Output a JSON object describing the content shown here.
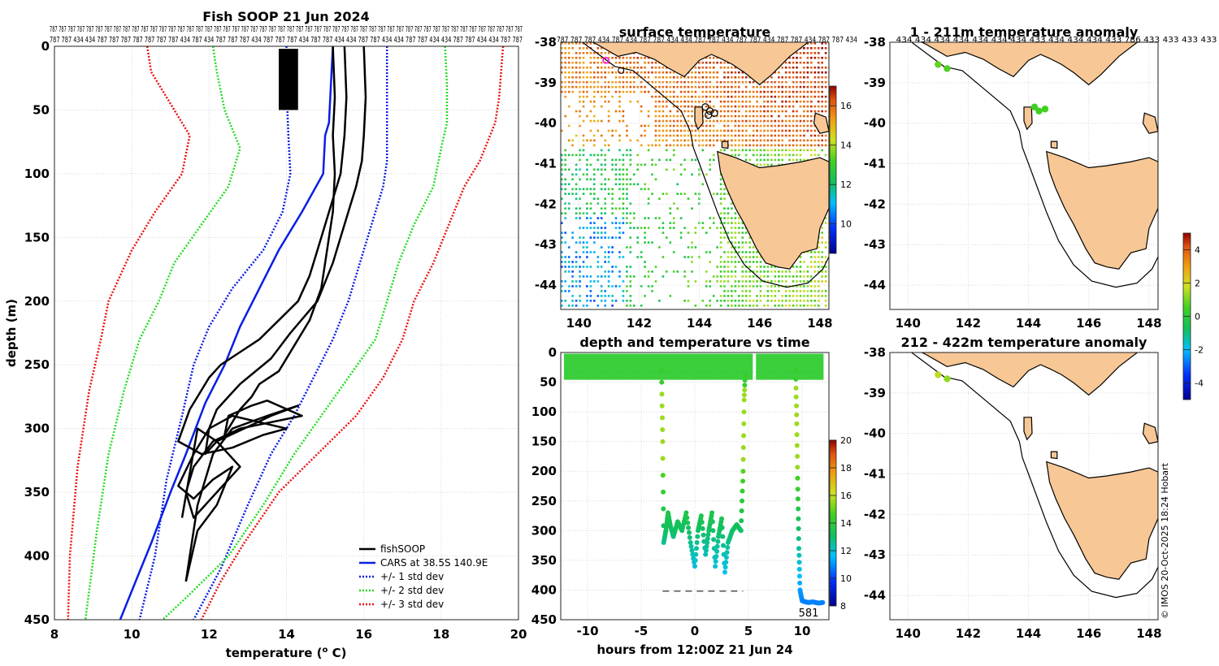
{
  "colors": {
    "land": "#f7c795",
    "sst_low": "#1030c0",
    "black": "#000000",
    "cars": "#0a1ee6",
    "std1": "#0a1ee6",
    "std2": "#22dd22",
    "std3": "#ee1111",
    "track_dot": "#ff00ff"
  },
  "chart_data": [
    {
      "id": "profile",
      "type": "line",
      "title": "Fish SOOP 21 Jun 2024",
      "xlabel": "temperature (",
      "xlabel_sup": "o",
      "xlabel_tail": " C)",
      "ylabel": "depth (m)",
      "xlim": [
        8,
        20
      ],
      "ylim": [
        0,
        450
      ],
      "xticks": [
        8,
        10,
        12,
        14,
        16,
        18,
        20
      ],
      "yticks": [
        0,
        50,
        100,
        150,
        200,
        250,
        300,
        350,
        400,
        450
      ],
      "grid": true,
      "top_labels_row1": "787 787 787 787 787 787 787 787 787 787 787 787 787 787 787 787 787 787 787 787 787 787 787 787 787 787 787 787 787 787 787 787 787 787 787 787 787 787 787 787 787 787 787 787 787 787 787 787 787 787 787 787",
      "top_labels_row2": "787 787 434 434 787 787 787 787 787 787 787 434 787 434 787 787 787 434 787 787 787 434 787 787 434 434 787 787 434 434 787 787 434 434 787 787 434 434 787 787",
      "legend": [
        "fishSOOP",
        "CARS at 38.5S 140.9E",
        "+/- 1 std dev",
        "+/- 2 std dev",
        "+/- 3 std dev"
      ],
      "series": [
        {
          "name": "CARS at 38.5S 140.9E",
          "style": "cars",
          "x": [
            15.2,
            15.15,
            15.1,
            15.0,
            14.95,
            14.4,
            13.8,
            13.3,
            12.8,
            12.4,
            11.9,
            11.4,
            11.0,
            10.5,
            10.1,
            9.7
          ],
          "y": [
            0,
            30,
            60,
            70,
            100,
            130,
            160,
            190,
            220,
            250,
            280,
            320,
            350,
            390,
            420,
            450
          ]
        },
        {
          "name": "+/- 1 std dev left",
          "style": "std1",
          "x": [
            14.0,
            14.0,
            14.05,
            14.1,
            13.9,
            13.4,
            12.6,
            12.0,
            11.6,
            11.3,
            10.9,
            10.6,
            10.2
          ],
          "y": [
            0,
            30,
            70,
            100,
            130,
            160,
            190,
            220,
            250,
            290,
            340,
            400,
            450
          ]
        },
        {
          "name": "+/- 1 std dev right",
          "style": "std1",
          "x": [
            16.6,
            16.6,
            16.6,
            16.6,
            16.5,
            16.2,
            15.9,
            15.6,
            15.2,
            14.7,
            14.2,
            13.6,
            13.0,
            12.3,
            11.6
          ],
          "y": [
            0,
            30,
            60,
            90,
            110,
            140,
            170,
            200,
            230,
            260,
            290,
            320,
            360,
            410,
            450
          ]
        },
        {
          "name": "+/- 2 std dev left",
          "style": "std2",
          "x": [
            12.1,
            12.2,
            12.4,
            12.8,
            12.5,
            11.8,
            11.1,
            10.7,
            10.2,
            9.8,
            9.4,
            9.1,
            8.8
          ],
          "y": [
            0,
            20,
            50,
            80,
            110,
            140,
            170,
            200,
            230,
            270,
            320,
            380,
            450
          ]
        },
        {
          "name": "+/- 2 std dev right",
          "style": "std2",
          "x": [
            18.1,
            18.15,
            18.15,
            18.0,
            17.8,
            17.3,
            16.9,
            16.6,
            16.3,
            15.6,
            14.9,
            14.2,
            13.4,
            12.5,
            11.5,
            10.8
          ],
          "y": [
            0,
            30,
            60,
            80,
            110,
            140,
            170,
            200,
            230,
            260,
            290,
            320,
            360,
            400,
            430,
            450
          ]
        },
        {
          "name": "+/- 3 std dev left",
          "style": "std3",
          "x": [
            10.4,
            10.5,
            10.9,
            11.5,
            11.3,
            10.6,
            10.0,
            9.4,
            9.2,
            8.9,
            8.6,
            8.4,
            8.35
          ],
          "y": [
            0,
            20,
            40,
            70,
            100,
            130,
            160,
            200,
            230,
            270,
            330,
            400,
            450
          ]
        },
        {
          "name": "+/- 3 std dev right",
          "style": "std3",
          "x": [
            19.6,
            19.55,
            19.5,
            19.4,
            19.0,
            18.6,
            18.2,
            17.8,
            17.3,
            17.0,
            16.5,
            15.8,
            14.8,
            13.8,
            12.9,
            12.3,
            11.8
          ],
          "y": [
            0,
            20,
            40,
            60,
            90,
            110,
            140,
            170,
            200,
            230,
            260,
            290,
            320,
            350,
            390,
            420,
            450
          ]
        },
        {
          "name": "fishSOOP",
          "style": "fish",
          "x": [
            15.2,
            15.25,
            15.2,
            15.25,
            15.2,
            15.1,
            15.0,
            14.9,
            14.6,
            14.2,
            13.8,
            13.3,
            13.1,
            12.8,
            12.6,
            12.4,
            12.5,
            13.1,
            13.5,
            14.4,
            12.8,
            12.1,
            11.6,
            11.4,
            11.6,
            12.2,
            12.8,
            12.2,
            11.7,
            11.3
          ],
          "y": [
            0,
            40,
            70,
            100,
            130,
            150,
            170,
            190,
            215,
            235,
            255,
            265,
            275,
            285,
            295,
            305,
            290,
            282,
            278,
            290,
            300,
            310,
            330,
            350,
            370,
            350,
            330,
            310,
            300,
            370
          ]
        },
        {
          "name": "fishSOOP",
          "style": "fish",
          "x": [
            16.0,
            16.05,
            16.0,
            15.95,
            15.8,
            15.6,
            15.4,
            15.2,
            14.8,
            14.1,
            13.6,
            13.2,
            12.8,
            12.5,
            12.2,
            12.0,
            11.9,
            12.2,
            12.9,
            13.6,
            14.3,
            13.5,
            12.6,
            12.1,
            11.7,
            11.5,
            11.4
          ],
          "y": [
            0,
            40,
            70,
            90,
            110,
            130,
            150,
            170,
            200,
            225,
            245,
            255,
            265,
            275,
            285,
            300,
            320,
            310,
            300,
            290,
            282,
            290,
            300,
            320,
            360,
            400,
            420
          ]
        },
        {
          "name": "fishSOOP",
          "style": "fish",
          "x": [
            15.5,
            15.55,
            15.5,
            15.4,
            15.2,
            15.0,
            14.8,
            14.6,
            14.3,
            13.8,
            13.3,
            12.8,
            12.3,
            12.0,
            11.8,
            11.5,
            11.2,
            11.8,
            12.6,
            13.4,
            14.0,
            13.3,
            12.6,
            12.0,
            11.6,
            11.2,
            11.6,
            12.1,
            12.6,
            12.2,
            11.7,
            11.4
          ],
          "y": [
            0,
            40,
            70,
            100,
            120,
            140,
            160,
            180,
            200,
            215,
            230,
            240,
            250,
            260,
            270,
            285,
            310,
            320,
            315,
            305,
            300,
            295,
            290,
            300,
            320,
            345,
            355,
            340,
            330,
            360,
            380,
            420
          ]
        }
      ],
      "fish_blob": {
        "x": [
          13.8,
          14.3
        ],
        "y": [
          2,
          50
        ]
      }
    },
    {
      "id": "sst_map",
      "type": "heatmap",
      "title": "surface temperature",
      "xlim": [
        139.4,
        148.3
      ],
      "ylim": [
        -44.6,
        -38
      ],
      "xticks": [
        140,
        142,
        144,
        146,
        148
      ],
      "yticks": [
        -38,
        -39,
        -40,
        -41,
        -42,
        -43,
        -44
      ],
      "ytick_labels": [
        "-38",
        "-39",
        "-40",
        "-41",
        "-42",
        "-43",
        "-44"
      ],
      "top_labels": "787 787 787 434 787 434 787 787 434 434 787 787 434 787 787 434 787 787 434 787 787 434",
      "colorbar": {
        "ticks": [
          "10",
          "12",
          "14",
          "16"
        ],
        "range": [
          8.5,
          17
        ]
      }
    },
    {
      "id": "depth_time",
      "type": "scatter",
      "title": "depth and temperature vs time",
      "xlabel": "hours from 12:00Z 21 Jun 24",
      "xlim": [
        -12.5,
        12.5
      ],
      "ylim": [
        0,
        450
      ],
      "xticks": [
        -10,
        -5,
        0,
        5,
        10
      ],
      "yticks": [
        0,
        50,
        100,
        150,
        200,
        250,
        300,
        350,
        400,
        450
      ],
      "annotation": "581",
      "colorbar": {
        "ticks": [
          "8",
          "10",
          "12",
          "14",
          "16",
          "18",
          "20"
        ],
        "range": [
          8,
          20
        ]
      },
      "dives": [
        {
          "t": [
            -3.1,
            -3.0,
            -2.9,
            -2.7,
            -2.5,
            -2.3,
            -2.0,
            -1.6,
            -1.2,
            -0.8,
            -0.4,
            0.0,
            0.3,
            0.6,
            1.0,
            1.3,
            1.6,
            1.9,
            2.2,
            2.5,
            2.8,
            3.1,
            3.5,
            3.9,
            4.3,
            4.5,
            4.6,
            4.7
          ],
          "d": [
            30,
            150,
            320,
            300,
            270,
            290,
            310,
            285,
            300,
            270,
            320,
            360,
            300,
            275,
            340,
            300,
            270,
            360,
            310,
            280,
            370,
            320,
            300,
            290,
            300,
            200,
            80,
            30
          ]
        },
        {
          "t": [
            9.4,
            9.5,
            9.6,
            9.7,
            9.8,
            10.0,
            10.3,
            10.6,
            11.0,
            11.5,
            12.0
          ],
          "d": [
            30,
            120,
            230,
            330,
            400,
            418,
            420,
            421,
            420,
            422,
            421
          ]
        }
      ],
      "dash_line": {
        "t": [
          -3,
          4.5
        ],
        "d": 402
      }
    },
    {
      "id": "anom1",
      "type": "scatter",
      "title": "1 - 211m temperature anomaly",
      "xlim": [
        139.4,
        148.3
      ],
      "ylim": [
        -44.6,
        -38
      ],
      "xticks": [
        140,
        142,
        144,
        146,
        148
      ],
      "yticks": [
        -38,
        -39,
        -40,
        -41,
        -42,
        -43,
        -44
      ],
      "top_labels": "434 434 434 434 434 434 434 433 434 434 434 433 786 433 433 433 433",
      "points": [
        {
          "lon": 141.0,
          "lat": -38.55,
          "v": 0.8
        },
        {
          "lon": 141.3,
          "lat": -38.65,
          "v": 0.6
        },
        {
          "lon": 144.2,
          "lat": -39.6,
          "v": 0.4
        },
        {
          "lon": 144.35,
          "lat": -39.7,
          "v": 0.5
        },
        {
          "lon": 144.55,
          "lat": -39.65,
          "v": 0.5
        }
      ]
    },
    {
      "id": "anom2",
      "type": "scatter",
      "title": "212 - 422m temperature anomaly",
      "xlim": [
        139.4,
        148.3
      ],
      "ylim": [
        -44.6,
        -38
      ],
      "xticks": [
        140,
        142,
        144,
        146,
        148
      ],
      "yticks": [
        -38,
        -39,
        -40,
        -41,
        -42,
        -43,
        -44
      ],
      "points": [
        {
          "lon": 141.0,
          "lat": -38.55,
          "v": 1.6
        },
        {
          "lon": 141.3,
          "lat": -38.65,
          "v": 1.2
        }
      ],
      "colorbar": {
        "ticks": [
          "4",
          "2",
          "0",
          "-2",
          "-4"
        ],
        "range": [
          -5,
          5
        ]
      }
    }
  ],
  "watermark": "© IMOS 20-Oct-2025 18:24 Hobart"
}
